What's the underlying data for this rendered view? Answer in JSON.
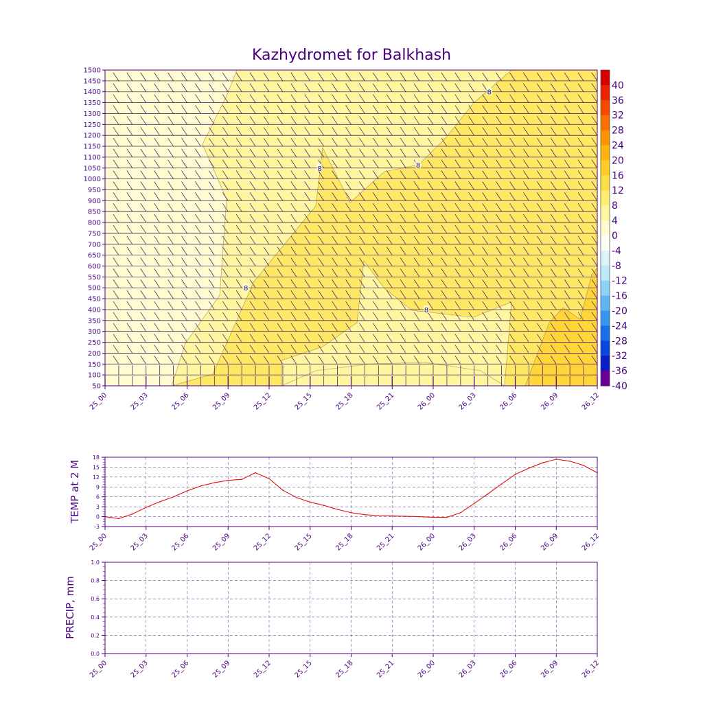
{
  "title": "Kazhydromet for Balkhash",
  "colors": {
    "axis": "#4b0082",
    "text": "#4b0082",
    "temp_line": "#e01010",
    "barb": "#4a2a6a",
    "contour_line": "#a0905a"
  },
  "chart_data": [
    {
      "id": "cross-section",
      "type": "heatmap",
      "title": "Kazhydromet for Balkhash",
      "x_labels": [
        "25_00",
        "25_03",
        "25_06",
        "25_09",
        "25_12",
        "25_15",
        "25_18",
        "25_21",
        "26_00",
        "26_03",
        "26_06",
        "26_09",
        "26_12"
      ],
      "x_range": [
        0,
        36
      ],
      "y_ticks": [
        50,
        100,
        150,
        200,
        250,
        300,
        350,
        400,
        450,
        500,
        550,
        600,
        650,
        700,
        750,
        800,
        850,
        900,
        950,
        1000,
        1050,
        1100,
        1150,
        1200,
        1250,
        1300,
        1350,
        1400,
        1450,
        1500
      ],
      "y_range": [
        50,
        1500
      ],
      "contour_labels": [
        {
          "text": "8",
          "x": 10.3,
          "y": 500
        },
        {
          "text": "8",
          "x": 15.7,
          "y": 1050
        },
        {
          "text": "8",
          "x": 22.9,
          "y": 1065
        },
        {
          "text": "8",
          "x": 23.5,
          "y": 400
        },
        {
          "text": "8",
          "x": 28.1,
          "y": 1400
        }
      ],
      "colorbar": {
        "labels": [
          "40",
          "36",
          "32",
          "28",
          "24",
          "20",
          "16",
          "12",
          "8",
          "4",
          "0",
          "-4",
          "-8",
          "-12",
          "-16",
          "-20",
          "-24",
          "-28",
          "-32",
          "-36",
          "-40"
        ],
        "colors": [
          "#d60000",
          "#eb2300",
          "#f54a00",
          "#fb7000",
          "#fe9300",
          "#ffb40f",
          "#ffcc28",
          "#ffdf46",
          "#ffee70",
          "#fff6a0",
          "#fffbd0",
          "#fdfff4",
          "#dcf3fa",
          "#bfe8f8",
          "#8fd0f5",
          "#5fb6f2",
          "#3797ee",
          "#1a70e8",
          "#0a47da",
          "#0a1ec4",
          "#6a0098"
        ]
      }
    },
    {
      "id": "temp-chart",
      "type": "line",
      "ylabel": "TEMP at 2 M",
      "x_labels": [
        "25_00",
        "25_03",
        "25_06",
        "25_09",
        "25_12",
        "25_15",
        "25_18",
        "25_21",
        "26_00",
        "26_03",
        "26_06",
        "26_09",
        "26_12"
      ],
      "y_ticks": [
        "-3",
        "0",
        "3",
        "6",
        "9",
        "12",
        "15",
        "18"
      ],
      "ylim": [
        -3,
        18
      ],
      "x": [
        0,
        1,
        2,
        3,
        4,
        5,
        6,
        7,
        8,
        9,
        10,
        11,
        12,
        13,
        14,
        15,
        16,
        17,
        18,
        19,
        20,
        21,
        22,
        23,
        24,
        25,
        26,
        27,
        28,
        29,
        30,
        31,
        32,
        33,
        34,
        35,
        36
      ],
      "values": [
        0.0,
        -0.6,
        0.8,
        2.8,
        4.5,
        6.0,
        7.8,
        9.3,
        10.3,
        11.0,
        11.3,
        13.3,
        11.5,
        8.0,
        5.8,
        4.4,
        3.4,
        2.2,
        1.2,
        0.6,
        0.3,
        0.2,
        0.1,
        0.0,
        -0.2,
        -0.2,
        1.2,
        4.0,
        6.9,
        9.9,
        12.8,
        14.7,
        16.3,
        17.4,
        16.8,
        15.5,
        13.3
      ]
    },
    {
      "id": "precip-chart",
      "type": "line",
      "ylabel": "PRECIP, mm",
      "x_labels": [
        "25_00",
        "25_03",
        "25_06",
        "25_09",
        "25_12",
        "25_15",
        "25_18",
        "25_21",
        "26_00",
        "26_03",
        "26_06",
        "26_09",
        "26_12"
      ],
      "y_ticks": [
        "0.0",
        "0.2",
        "0.4",
        "0.6",
        "0.8",
        "1.0"
      ],
      "ylim": [
        0,
        1.0
      ],
      "values": []
    }
  ]
}
